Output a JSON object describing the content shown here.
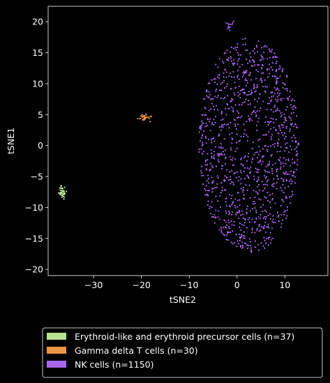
{
  "chart_data": {
    "type": "scatter",
    "title": "",
    "xlabel": "tSNE2",
    "ylabel": "tSNE1",
    "xlim": [
      -39.5,
      19
    ],
    "ylim": [
      -21,
      22.5
    ],
    "xticks": [
      -30,
      -20,
      -10,
      0,
      10
    ],
    "yticks": [
      -20,
      -15,
      -10,
      -5,
      0,
      5,
      10,
      15,
      20
    ],
    "grid": false,
    "legend_position": "bottom",
    "background": "#000000",
    "foreground": "#ffffff",
    "series": [
      {
        "name": "Erythroid-like and erythroid precursor cells (n=37)",
        "color": "#b6e58f",
        "count": 37,
        "center": [
          -36.5,
          -7.5
        ],
        "spread": [
          0.35,
          0.55
        ],
        "shape": "gaussian"
      },
      {
        "name": "Gamma delta T cells (n=30)",
        "color": "#eb9445",
        "count": 30,
        "center": [
          -19.2,
          4.5
        ],
        "spread": [
          0.7,
          0.25
        ],
        "shape": "gaussian"
      },
      {
        "name": "NK cells (n=1150)",
        "color": "#a865f2",
        "count": 1150,
        "center": [
          2.5,
          0.0
        ],
        "spread": [
          10.5,
          17.5
        ],
        "shape": "ellipse",
        "extra": [
          {
            "count": 14,
            "center": [
              -1.6,
              19.7
            ],
            "spread": [
              0.4,
              0.4
            ]
          }
        ]
      }
    ]
  }
}
